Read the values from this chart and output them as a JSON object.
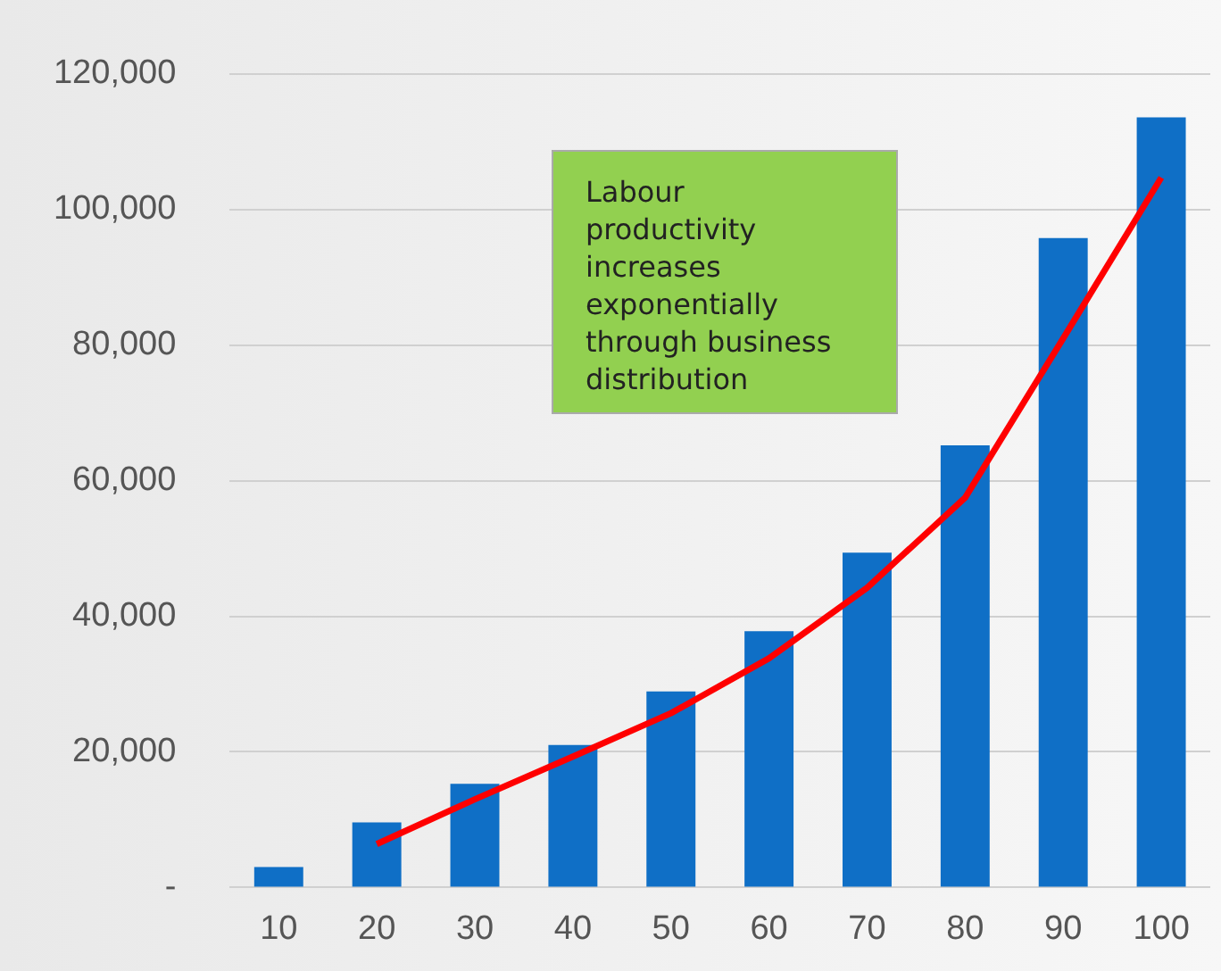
{
  "chart_data": {
    "type": "bar",
    "categories": [
      "10",
      "20",
      "30",
      "40",
      "50",
      "60",
      "70",
      "80",
      "90",
      "100"
    ],
    "series": [
      {
        "color": "#0f6fc6",
        "values": [
          3000,
          9600,
          15300,
          21000,
          28900,
          37800,
          49400,
          65200,
          95800,
          113600
        ]
      },
      {
        "type": "line",
        "color": "#ff0000",
        "values": [
          null,
          6400,
          13000,
          19300,
          25700,
          33800,
          44200,
          57500,
          81000,
          104700
        ]
      }
    ],
    "ylim": [
      0,
      120000
    ],
    "yticks": [
      {
        "value": 0,
        "label": "-"
      },
      {
        "value": 20000,
        "label": "20,000"
      },
      {
        "value": 40000,
        "label": "40,000"
      },
      {
        "value": 60000,
        "label": "60,000"
      },
      {
        "value": 80000,
        "label": "80,000"
      },
      {
        "value": 100000,
        "label": "100,000"
      },
      {
        "value": 120000,
        "label": "120,000"
      }
    ],
    "grid": "y",
    "legend": false,
    "marker": "none",
    "line_style": "solid",
    "annotations": [
      "Labour productivity increases exponentially through business distribution"
    ]
  }
}
